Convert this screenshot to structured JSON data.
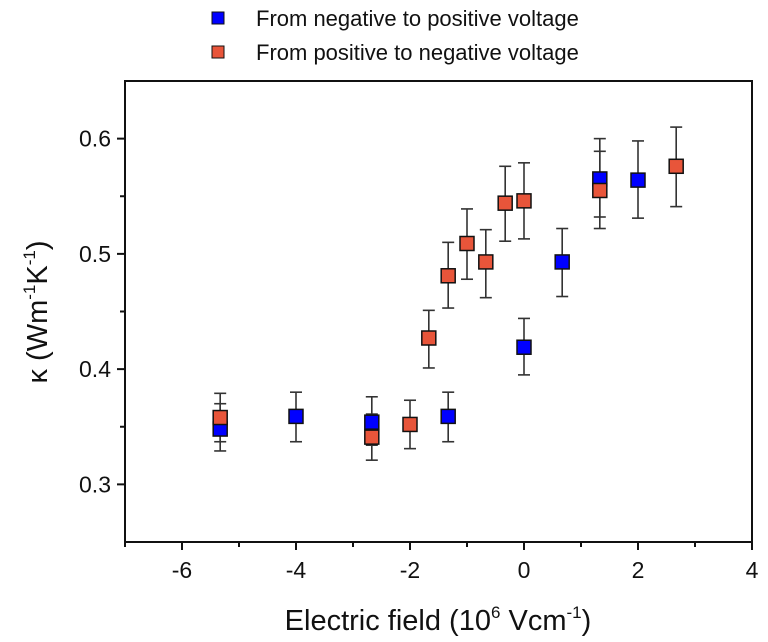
{
  "chart_data": {
    "type": "scatter",
    "title": "",
    "xlabel": "Electric field (10^6 Vcm^-1)",
    "xlabel_parts": {
      "main": "Electric field (10",
      "sup1": "6",
      "mid": " Vcm",
      "sup2": "-1",
      "end": ")"
    },
    "ylabel": "κ (Wm^-1K^-1)",
    "ylabel_parts": {
      "main": "κ (Wm",
      "sup1": "-1",
      "mid": "K",
      "sup2": "-1",
      "end": ")"
    },
    "xlim": [
      -7,
      4
    ],
    "ylim": [
      0.25,
      0.65
    ],
    "xticks": [
      -6,
      -4,
      -2,
      0,
      2,
      4
    ],
    "xtick_labels": [
      "-6",
      "-4",
      "-2",
      "0",
      "2",
      "4"
    ],
    "x_minor_ticks": [
      -7,
      -5,
      -3,
      -1,
      1,
      3
    ],
    "yticks": [
      0.3,
      0.4,
      0.5,
      0.6
    ],
    "ytick_labels": [
      "0.3",
      "0.4",
      "0.5",
      "0.6"
    ],
    "y_minor_ticks": [
      0.35,
      0.45,
      0.55
    ],
    "grid": false,
    "legend_position": "top-center (above plot)",
    "series": [
      {
        "name": "From negative to positive voltage",
        "color": "#0000ff",
        "marker": "square",
        "points": [
          {
            "x": -5.33,
            "y": 0.348,
            "yerr_low": 0.329,
            "yerr_high": 0.37
          },
          {
            "x": -4.0,
            "y": 0.359,
            "yerr_low": 0.337,
            "yerr_high": 0.38
          },
          {
            "x": -2.67,
            "y": 0.354,
            "yerr_low": 0.334,
            "yerr_high": 0.376
          },
          {
            "x": -1.33,
            "y": 0.359,
            "yerr_low": 0.337,
            "yerr_high": 0.38
          },
          {
            "x": 0.0,
            "y": 0.419,
            "yerr_low": 0.395,
            "yerr_high": 0.444
          },
          {
            "x": 0.67,
            "y": 0.493,
            "yerr_low": 0.463,
            "yerr_high": 0.522
          },
          {
            "x": 1.33,
            "y": 0.565,
            "yerr_low": 0.522,
            "yerr_high": 0.6
          },
          {
            "x": 2.0,
            "y": 0.564,
            "yerr_low": 0.531,
            "yerr_high": 0.598
          }
        ]
      },
      {
        "name": "From positive to negative voltage",
        "color": "#e8553a",
        "marker": "square",
        "points": [
          {
            "x": -5.33,
            "y": 0.358,
            "yerr_low": 0.337,
            "yerr_high": 0.379
          },
          {
            "x": -2.67,
            "y": 0.341,
            "yerr_low": 0.321,
            "yerr_high": 0.361
          },
          {
            "x": -2.0,
            "y": 0.352,
            "yerr_low": 0.331,
            "yerr_high": 0.373
          },
          {
            "x": -1.67,
            "y": 0.427,
            "yerr_low": 0.401,
            "yerr_high": 0.451
          },
          {
            "x": -1.33,
            "y": 0.481,
            "yerr_low": 0.453,
            "yerr_high": 0.51
          },
          {
            "x": -1.0,
            "y": 0.509,
            "yerr_low": 0.478,
            "yerr_high": 0.539
          },
          {
            "x": -0.67,
            "y": 0.493,
            "yerr_low": 0.462,
            "yerr_high": 0.521
          },
          {
            "x": -0.33,
            "y": 0.544,
            "yerr_low": 0.511,
            "yerr_high": 0.576
          },
          {
            "x": 0.0,
            "y": 0.546,
            "yerr_low": 0.513,
            "yerr_high": 0.579
          },
          {
            "x": 1.33,
            "y": 0.555,
            "yerr_low": 0.532,
            "yerr_high": 0.589
          },
          {
            "x": 2.67,
            "y": 0.576,
            "yerr_low": 0.541,
            "yerr_high": 0.61
          }
        ]
      }
    ]
  }
}
